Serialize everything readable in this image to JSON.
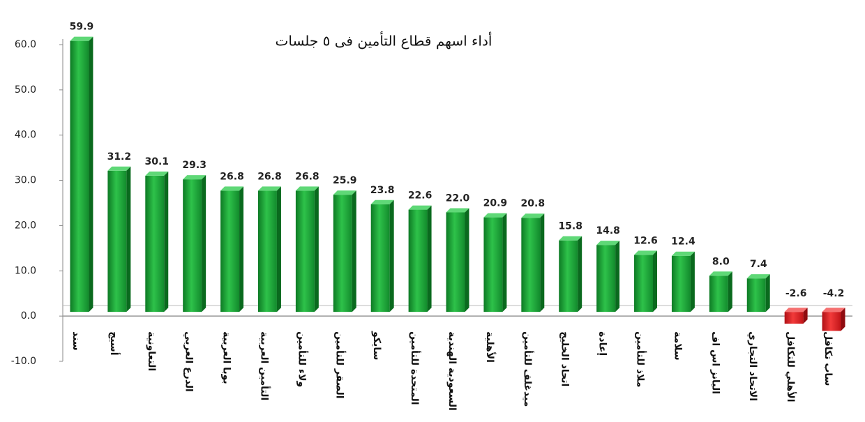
{
  "chart_data": {
    "type": "bar",
    "title": "أداء اسهم قطاع التأمين فى ٥ جلسات",
    "categories": [
      "سند",
      "أسيج",
      "التعاونية",
      "الدرع العربي",
      "بوبا العربية",
      "التأمين العربية",
      "ولاء للتأمين",
      "الصقر للتأمين",
      "سايكو",
      "المتحدة للتأمين",
      "السعودية الهندية",
      "الأهلية",
      "ميدغلف للتأمين",
      "اتحاد الخليج",
      "إعادة",
      "ملاذ للتأمين",
      "سلامة",
      "اليانز اس اف",
      "الاتحاد التجاري",
      "الأهلي للتكافل",
      "ساب تكافل"
    ],
    "values": [
      59.9,
      31.2,
      30.1,
      29.3,
      26.8,
      26.8,
      26.8,
      25.9,
      23.8,
      22.6,
      22.0,
      20.9,
      20.8,
      15.8,
      14.8,
      12.6,
      12.4,
      8.0,
      7.4,
      -2.6,
      -4.2
    ],
    "value_labels": [
      "59.9",
      "31.2",
      "30.1",
      "29.3",
      "26.8",
      "26.8",
      "26.8",
      "25.9",
      "23.8",
      "22.6",
      "22.0",
      "20.9",
      "20.8",
      "15.8",
      "14.8",
      "12.6",
      "12.4",
      "8.0",
      "7.4",
      "-2.6",
      "-4.2"
    ],
    "color": "#1fa33a",
    "negative_color": "#e0191f",
    "ylim": [
      -10,
      60
    ],
    "yticks": [
      {
        "value": -10,
        "label": "-10.0"
      },
      {
        "value": 0,
        "label": "0.0"
      },
      {
        "value": 10,
        "label": "10.0"
      },
      {
        "value": 20,
        "label": "20.0"
      },
      {
        "value": 30,
        "label": "30.0"
      },
      {
        "value": 40,
        "label": "40.0"
      },
      {
        "value": 50,
        "label": "50.0"
      },
      {
        "value": 60,
        "label": "60.0"
      }
    ],
    "grid": false
  }
}
